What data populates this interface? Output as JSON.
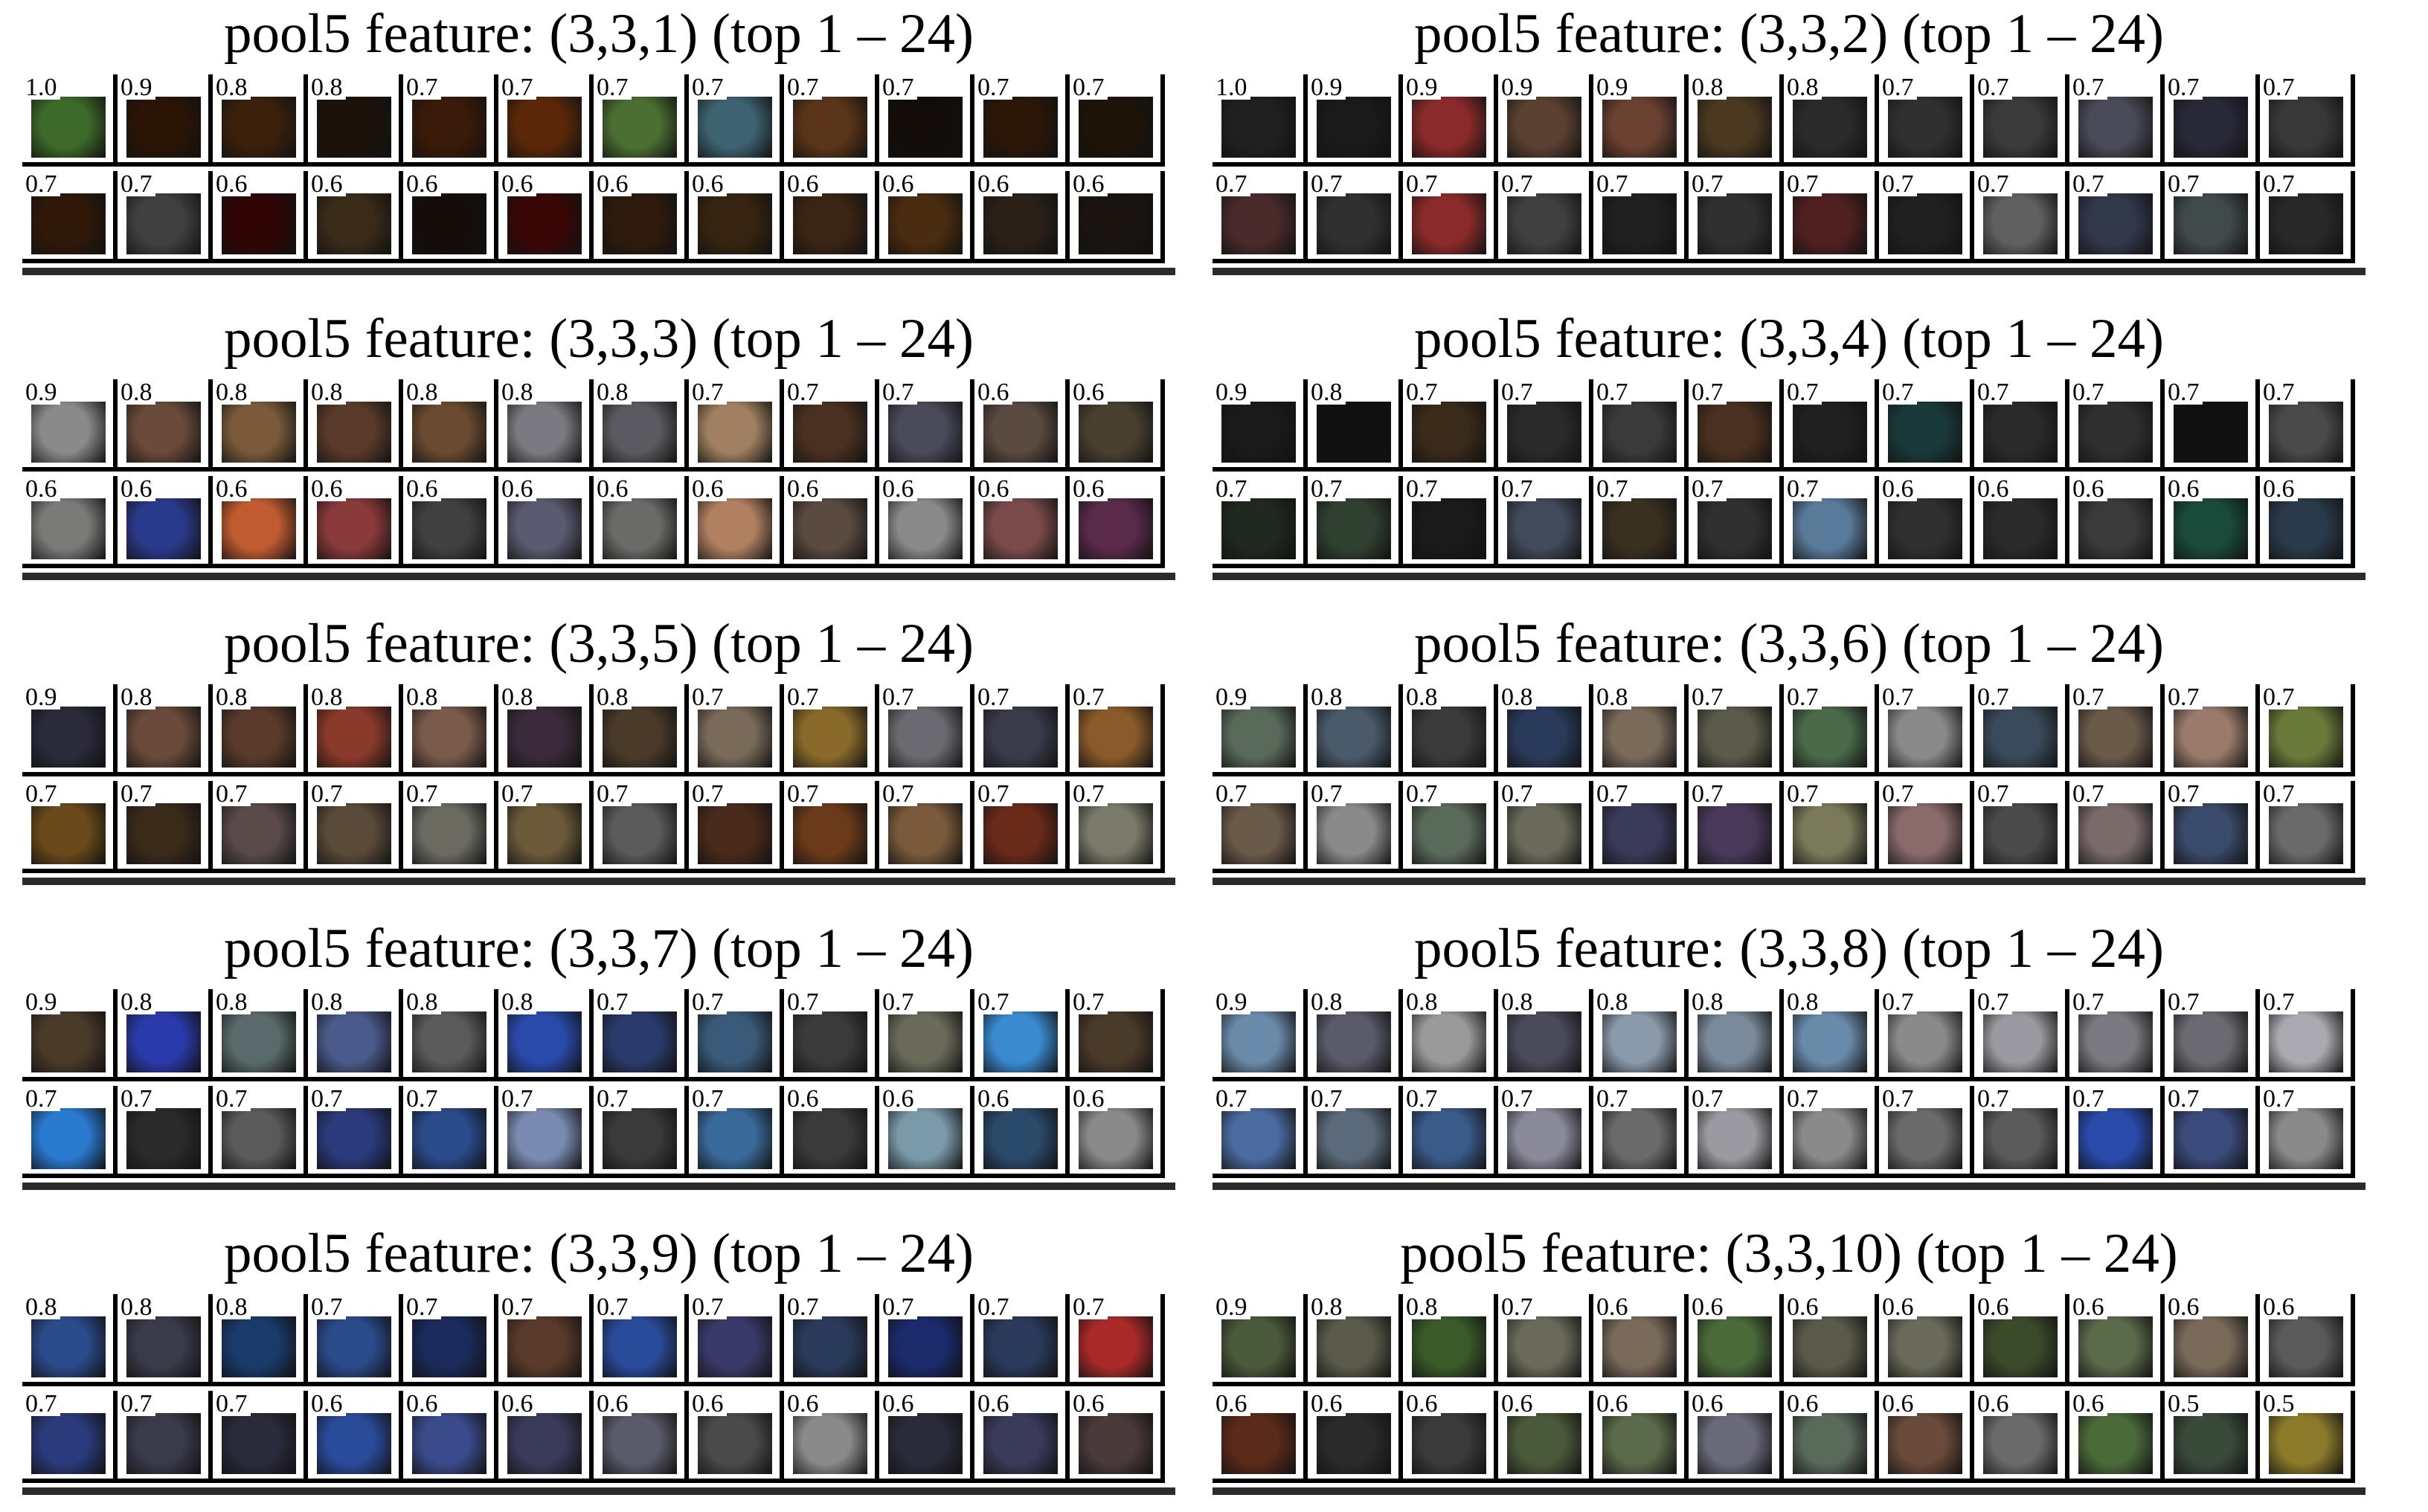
{
  "figure": {
    "panels": [
      {
        "title": "pool5 feature: (3,3,1) (top 1 – 24)",
        "scores": [
          "1.0",
          "0.9",
          "0.8",
          "0.8",
          "0.7",
          "0.7",
          "0.7",
          "0.7",
          "0.7",
          "0.7",
          "0.7",
          "0.7",
          "0.7",
          "0.7",
          "0.6",
          "0.6",
          "0.6",
          "0.6",
          "0.6",
          "0.6",
          "0.6",
          "0.6",
          "0.6",
          "0.6"
        ],
        "palette": [
          "#3d6a2a",
          "#2a1405",
          "#3b200c",
          "#1d120a",
          "#3a1a08",
          "#5a2808",
          "#4b6e32",
          "#3d6270",
          "#5a3418",
          "#120c08",
          "#2b1608",
          "#1e1408",
          "#2f1808",
          "#404040",
          "#300505",
          "#3a2a18",
          "#140c08",
          "#3a0606",
          "#2e1a0c",
          "#362410",
          "#3a2414",
          "#4a2c10",
          "#2a2018",
          "#1a1410"
        ]
      },
      {
        "title": "pool5 feature: (3,3,2) (top 1 – 24)",
        "scores": [
          "1.0",
          "0.9",
          "0.9",
          "0.9",
          "0.9",
          "0.8",
          "0.8",
          "0.7",
          "0.7",
          "0.7",
          "0.7",
          "0.7",
          "0.7",
          "0.7",
          "0.7",
          "0.7",
          "0.7",
          "0.7",
          "0.7",
          "0.7",
          "0.7",
          "0.7",
          "0.7",
          "0.7"
        ],
        "palette": [
          "#202020",
          "#1a1a1a",
          "#8a2a2a",
          "#5a4030",
          "#6a4030",
          "#4a3820",
          "#2a2a2a",
          "#303030",
          "#3a3a3a",
          "#4a4a58",
          "#282838",
          "#383838",
          "#4a2a2a",
          "#303030",
          "#8a2a2a",
          "#404040",
          "#202020",
          "#303030",
          "#502020",
          "#202020",
          "#606060",
          "#30384a",
          "#404a4a",
          "#282828"
        ]
      },
      {
        "title": "pool5 feature: (3,3,3) (top 1 – 24)",
        "scores": [
          "0.9",
          "0.8",
          "0.8",
          "0.8",
          "0.8",
          "0.8",
          "0.8",
          "0.7",
          "0.7",
          "0.7",
          "0.6",
          "0.6",
          "0.6",
          "0.6",
          "0.6",
          "0.6",
          "0.6",
          "0.6",
          "0.6",
          "0.6",
          "0.6",
          "0.6",
          "0.6",
          "0.6"
        ],
        "palette": [
          "#8a8a8a",
          "#6a4a3a",
          "#7a5a3a",
          "#5a3a2a",
          "#6a4a30",
          "#7a7a80",
          "#5a5a60",
          "#a08060",
          "#4a3020",
          "#4a4a5a",
          "#5a4a40",
          "#4a4030",
          "#7a7a78",
          "#2a3a8a",
          "#c05a30",
          "#8a3a3a",
          "#404040",
          "#5a5a70",
          "#6a6a68",
          "#b08060",
          "#5a4a40",
          "#8a8a8a",
          "#7a4a4a",
          "#5a2a4a"
        ]
      },
      {
        "title": "pool5 feature: (3,3,4) (top 1 – 24)",
        "scores": [
          "0.9",
          "0.8",
          "0.7",
          "0.7",
          "0.7",
          "0.7",
          "0.7",
          "0.7",
          "0.7",
          "0.7",
          "0.7",
          "0.7",
          "0.7",
          "0.7",
          "0.7",
          "0.7",
          "0.7",
          "0.7",
          "0.7",
          "0.6",
          "0.6",
          "0.6",
          "0.6",
          "0.6"
        ],
        "palette": [
          "#1a1a1a",
          "#101010",
          "#3a2a1a",
          "#2a2a2a",
          "#3a3a3a",
          "#4a3020",
          "#202020",
          "#1a3a3a",
          "#2a2a2a",
          "#303030",
          "#101010",
          "#4a4a4a",
          "#202820",
          "#304030",
          "#1a1a1a",
          "#404a5a",
          "#3a3020",
          "#303030",
          "#5a7a9a",
          "#303030",
          "#2a2a2a",
          "#3a3a3a",
          "#1a4a3a",
          "#2a3a4a"
        ]
      },
      {
        "title": "pool5 feature: (3,3,5) (top 1 – 24)",
        "scores": [
          "0.9",
          "0.8",
          "0.8",
          "0.8",
          "0.8",
          "0.8",
          "0.8",
          "0.7",
          "0.7",
          "0.7",
          "0.7",
          "0.7",
          "0.7",
          "0.7",
          "0.7",
          "0.7",
          "0.7",
          "0.7",
          "0.7",
          "0.7",
          "0.7",
          "0.7",
          "0.7",
          "0.7"
        ],
        "palette": [
          "#2a2a3a",
          "#6a4a3a",
          "#5a3a2a",
          "#8a3a2a",
          "#7a5a4a",
          "#3a2a3a",
          "#4a3a2a",
          "#7a6a5a",
          "#8a6a2a",
          "#6a6a70",
          "#3a3a4a",
          "#8a5a2a",
          "#6a4a1a",
          "#3a2a1a",
          "#5a4a4a",
          "#5a4a3a",
          "#6a6a60",
          "#6a5a3a",
          "#5a5a5a",
          "#4a2a1a",
          "#6a3a1a",
          "#7a5a3a",
          "#6a2a1a",
          "#7a7a6a"
        ]
      },
      {
        "title": "pool5 feature: (3,3,6) (top 1 – 24)",
        "scores": [
          "0.9",
          "0.8",
          "0.8",
          "0.8",
          "0.8",
          "0.7",
          "0.7",
          "0.7",
          "0.7",
          "0.7",
          "0.7",
          "0.7",
          "0.7",
          "0.7",
          "0.7",
          "0.7",
          "0.7",
          "0.7",
          "0.7",
          "0.7",
          "0.7",
          "0.7",
          "0.7",
          "0.7"
        ],
        "palette": [
          "#5a6a5a",
          "#4a5a6a",
          "#3a3a3a",
          "#2a3a5a",
          "#7a6a5a",
          "#5a5a4a",
          "#4a6a4a",
          "#8a8a8a",
          "#3a4a5a",
          "#6a5a4a",
          "#9a7a6a",
          "#6a7a3a",
          "#6a5a4a",
          "#8a8a8a",
          "#5a6a5a",
          "#6a6a5a",
          "#3a3a5a",
          "#4a3a5a",
          "#7a7a5a",
          "#8a6a6a",
          "#4a4a4a",
          "#7a6a6a",
          "#3a4a6a",
          "#6a6a6a"
        ]
      },
      {
        "title": "pool5 feature: (3,3,7) (top 1 – 24)",
        "scores": [
          "0.9",
          "0.8",
          "0.8",
          "0.8",
          "0.8",
          "0.8",
          "0.7",
          "0.7",
          "0.7",
          "0.7",
          "0.7",
          "0.7",
          "0.7",
          "0.7",
          "0.7",
          "0.7",
          "0.7",
          "0.7",
          "0.7",
          "0.7",
          "0.6",
          "0.6",
          "0.6",
          "0.6"
        ],
        "palette": [
          "#4a3a2a",
          "#2a3aaa",
          "#5a6a6a",
          "#4a5a8a",
          "#5a5a5a",
          "#2a4aaa",
          "#2a3a6a",
          "#3a5a7a",
          "#3a3a3a",
          "#6a6a5a",
          "#3a8ad0",
          "#4a3a2a",
          "#2a7ad0",
          "#2a2a2a",
          "#5a5a5a",
          "#2a3a7a",
          "#2a4a8a",
          "#7a8ab0",
          "#3a3a3a",
          "#3a6a9a",
          "#3a3a3a",
          "#7a9aaa",
          "#2a4a6a",
          "#8a8a8a"
        ]
      },
      {
        "title": "pool5 feature: (3,3,8) (top 1 – 24)",
        "scores": [
          "0.9",
          "0.8",
          "0.8",
          "0.8",
          "0.8",
          "0.8",
          "0.8",
          "0.7",
          "0.7",
          "0.7",
          "0.7",
          "0.7",
          "0.7",
          "0.7",
          "0.7",
          "0.7",
          "0.7",
          "0.7",
          "0.7",
          "0.7",
          "0.7",
          "0.7",
          "0.7",
          "0.7"
        ],
        "palette": [
          "#6a8aaa",
          "#5a5a6a",
          "#9a9a9a",
          "#4a4a5a",
          "#8a9aaa",
          "#7a8a9a",
          "#6a8aaa",
          "#8a8a8a",
          "#9a9aa0",
          "#7a7a80",
          "#6a6a70",
          "#aaaab0",
          "#4a6aa0",
          "#5a6a7a",
          "#3a5a8a",
          "#8a8a9a",
          "#6a6a6a",
          "#9a9aa0",
          "#8a8a8a",
          "#6a6a6a",
          "#5a5a5a",
          "#2a4aaa",
          "#3a4a7a",
          "#8a8a8a"
        ]
      },
      {
        "title": "pool5 feature: (3,3,9) (top 1 – 24)",
        "scores": [
          "0.8",
          "0.8",
          "0.8",
          "0.7",
          "0.7",
          "0.7",
          "0.7",
          "0.7",
          "0.7",
          "0.7",
          "0.7",
          "0.7",
          "0.7",
          "0.7",
          "0.7",
          "0.6",
          "0.6",
          "0.6",
          "0.6",
          "0.6",
          "0.6",
          "0.6",
          "0.6",
          "0.6"
        ],
        "palette": [
          "#2a4a8a",
          "#3a3a4a",
          "#1a3a6a",
          "#2a4a8a",
          "#1a2a5a",
          "#5a3a2a",
          "#2a4a9a",
          "#3a3a6a",
          "#2a3a5a",
          "#1a2a6a",
          "#2a3a5a",
          "#aa2a2a",
          "#2a3a7a",
          "#3a3a4a",
          "#2a2a3a",
          "#2a4a9a",
          "#3a4a8a",
          "#3a3a5a",
          "#5a5a6a",
          "#4a4a4a",
          "#8a8a8a",
          "#2a2a3a",
          "#3a3a5a",
          "#4a3a3a"
        ]
      },
      {
        "title": "pool5 feature: (3,3,10) (top 1 – 24)",
        "scores": [
          "0.9",
          "0.8",
          "0.8",
          "0.7",
          "0.6",
          "0.6",
          "0.6",
          "0.6",
          "0.6",
          "0.6",
          "0.6",
          "0.6",
          "0.6",
          "0.6",
          "0.6",
          "0.6",
          "0.6",
          "0.6",
          "0.6",
          "0.6",
          "0.6",
          "0.6",
          "0.5",
          "0.5"
        ],
        "palette": [
          "#4a5a3a",
          "#5a5a4a",
          "#3a5a2a",
          "#6a6a5a",
          "#7a6a5a",
          "#4a6a3a",
          "#5a5a4a",
          "#6a6a5a",
          "#3a4a2a",
          "#5a6a4a",
          "#7a6a5a",
          "#5a5a5a",
          "#5a2a1a",
          "#2a2a2a",
          "#3a3a3a",
          "#4a5a3a",
          "#5a6a4a",
          "#6a6a7a",
          "#5a6a5a",
          "#6a4a3a",
          "#6a6a6a",
          "#4a6a3a",
          "#3a4a3a",
          "#8a7a2a"
        ]
      }
    ]
  }
}
